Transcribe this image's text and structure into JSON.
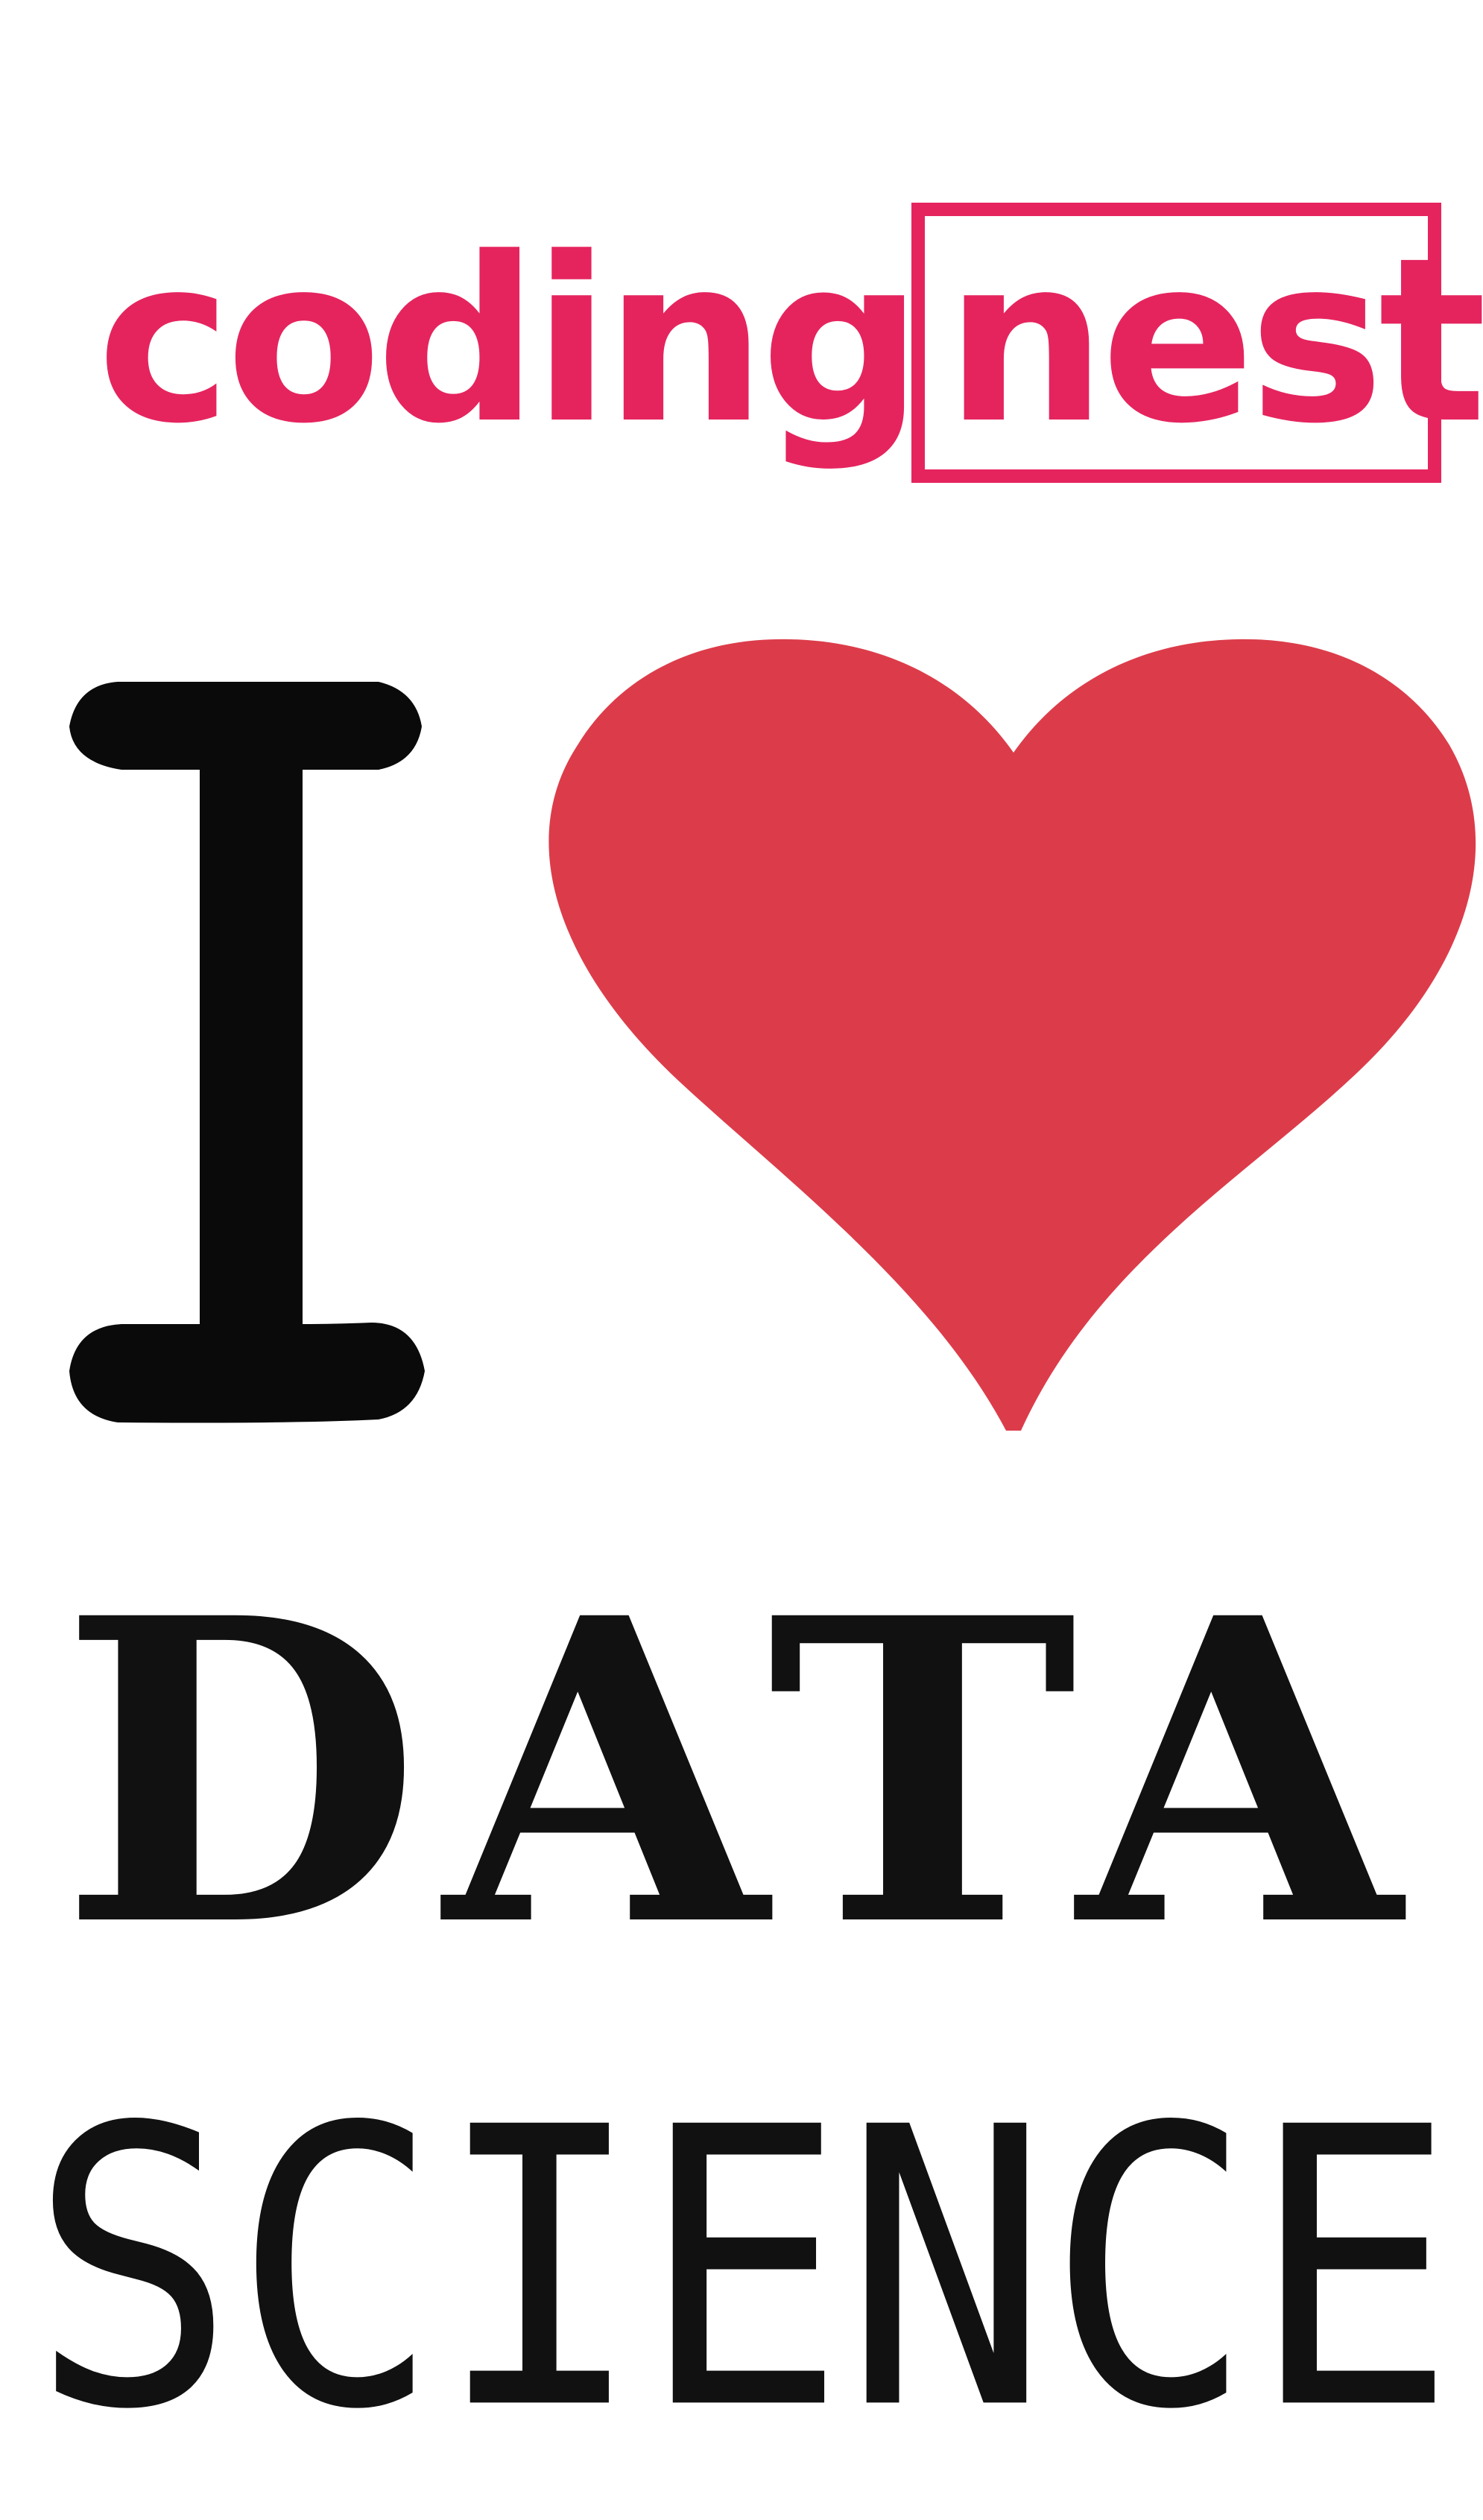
{
  "logo": {
    "prefix": "coding",
    "suffix": "nest",
    "color": "#e5245e"
  },
  "poster": {
    "pronoun": "I",
    "heart_icon": "heart-icon",
    "heart_color": "#dc3c4a",
    "line1": "DATA",
    "line2": "SCIENCE",
    "text_color": "#111111"
  }
}
